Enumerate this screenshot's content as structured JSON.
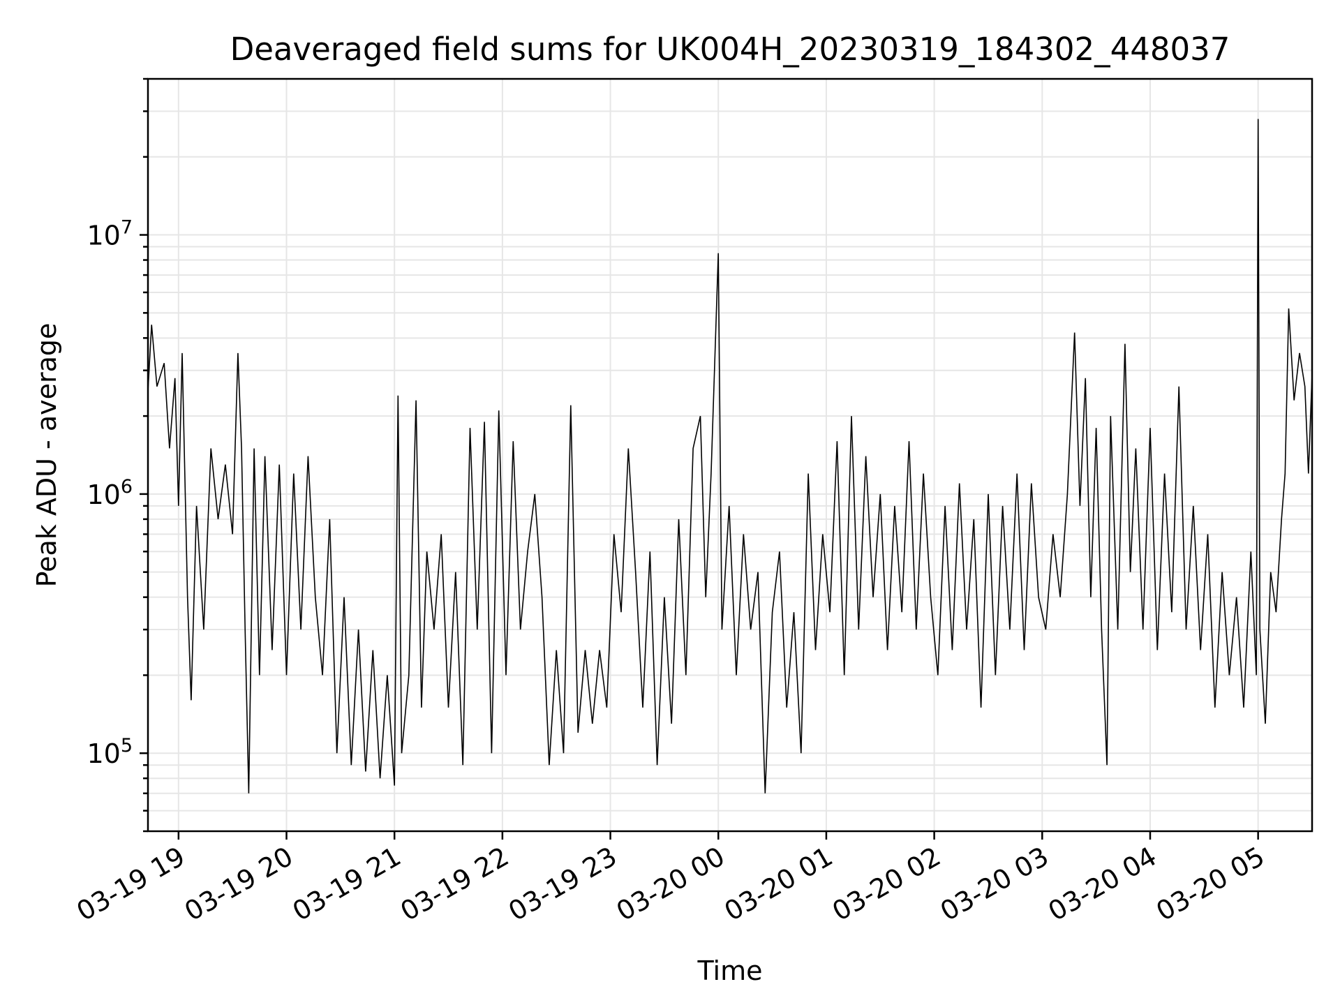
{
  "chart_data": {
    "type": "line",
    "title": "Deaveraged field sums for UK004H_20230319_184302_448037",
    "xlabel": "Time",
    "ylabel": "Peak ADU - average",
    "yscale": "log",
    "ylim": [
      50000,
      40000000
    ],
    "xlim": [
      "03-19 18:43",
      "03-20 05:30"
    ],
    "grid": true,
    "x_tick_labels": [
      "03-19 19",
      "03-19 20",
      "03-19 21",
      "03-19 22",
      "03-19 23",
      "03-20 00",
      "03-20 01",
      "03-20 02",
      "03-20 03",
      "03-20 04",
      "03-20 05"
    ],
    "y_tick_labels": [
      {
        "base": "10",
        "exp": "5",
        "value": 100000
      },
      {
        "base": "10",
        "exp": "6",
        "value": 1000000
      },
      {
        "base": "10",
        "exp": "7",
        "value": 10000000
      }
    ],
    "series": [
      {
        "color": "#000000",
        "points": [
          [
            "03-19 18:43",
            2500000
          ],
          [
            "03-19 18:45",
            4500000
          ],
          [
            "03-19 18:48",
            2600000
          ],
          [
            "03-19 18:52",
            3200000
          ],
          [
            "03-19 18:55",
            1500000
          ],
          [
            "03-19 18:58",
            2800000
          ],
          [
            "03-19 19:00",
            900000
          ],
          [
            "03-19 19:02",
            3500000
          ],
          [
            "03-19 19:05",
            400000
          ],
          [
            "03-19 19:07",
            160000
          ],
          [
            "03-19 19:10",
            900000
          ],
          [
            "03-19 19:14",
            300000
          ],
          [
            "03-19 19:18",
            1500000
          ],
          [
            "03-19 19:22",
            800000
          ],
          [
            "03-19 19:26",
            1300000
          ],
          [
            "03-19 19:30",
            700000
          ],
          [
            "03-19 19:33",
            3500000
          ],
          [
            "03-19 19:35",
            1500000
          ],
          [
            "03-19 19:37",
            300000
          ],
          [
            "03-19 19:39",
            70000
          ],
          [
            "03-19 19:42",
            1500000
          ],
          [
            "03-19 19:45",
            200000
          ],
          [
            "03-19 19:48",
            1400000
          ],
          [
            "03-19 19:52",
            250000
          ],
          [
            "03-19 19:56",
            1300000
          ],
          [
            "03-19 20:00",
            200000
          ],
          [
            "03-19 20:04",
            1200000
          ],
          [
            "03-19 20:08",
            300000
          ],
          [
            "03-19 20:12",
            1400000
          ],
          [
            "03-19 20:16",
            400000
          ],
          [
            "03-19 20:20",
            200000
          ],
          [
            "03-19 20:24",
            800000
          ],
          [
            "03-19 20:28",
            100000
          ],
          [
            "03-19 20:32",
            400000
          ],
          [
            "03-19 20:36",
            90000
          ],
          [
            "03-19 20:40",
            300000
          ],
          [
            "03-19 20:44",
            85000
          ],
          [
            "03-19 20:48",
            250000
          ],
          [
            "03-19 20:52",
            80000
          ],
          [
            "03-19 20:56",
            200000
          ],
          [
            "03-19 21:00",
            75000
          ],
          [
            "03-19 21:02",
            2400000
          ],
          [
            "03-19 21:04",
            100000
          ],
          [
            "03-19 21:08",
            200000
          ],
          [
            "03-19 21:12",
            2300000
          ],
          [
            "03-19 21:15",
            150000
          ],
          [
            "03-19 21:18",
            600000
          ],
          [
            "03-19 21:22",
            300000
          ],
          [
            "03-19 21:26",
            700000
          ],
          [
            "03-19 21:30",
            150000
          ],
          [
            "03-19 21:34",
            500000
          ],
          [
            "03-19 21:38",
            90000
          ],
          [
            "03-19 21:42",
            1800000
          ],
          [
            "03-19 21:46",
            300000
          ],
          [
            "03-19 21:50",
            1900000
          ],
          [
            "03-19 21:54",
            100000
          ],
          [
            "03-19 21:58",
            2100000
          ],
          [
            "03-19 22:02",
            200000
          ],
          [
            "03-19 22:06",
            1600000
          ],
          [
            "03-19 22:10",
            300000
          ],
          [
            "03-19 22:14",
            600000
          ],
          [
            "03-19 22:18",
            1000000
          ],
          [
            "03-19 22:22",
            400000
          ],
          [
            "03-19 22:26",
            90000
          ],
          [
            "03-19 22:30",
            250000
          ],
          [
            "03-19 22:34",
            100000
          ],
          [
            "03-19 22:38",
            2200000
          ],
          [
            "03-19 22:42",
            120000
          ],
          [
            "03-19 22:46",
            250000
          ],
          [
            "03-19 22:50",
            130000
          ],
          [
            "03-19 22:54",
            250000
          ],
          [
            "03-19 22:58",
            150000
          ],
          [
            "03-19 23:02",
            700000
          ],
          [
            "03-19 23:06",
            350000
          ],
          [
            "03-19 23:10",
            1500000
          ],
          [
            "03-19 23:14",
            500000
          ],
          [
            "03-19 23:18",
            150000
          ],
          [
            "03-19 23:22",
            600000
          ],
          [
            "03-19 23:26",
            90000
          ],
          [
            "03-19 23:30",
            400000
          ],
          [
            "03-19 23:34",
            130000
          ],
          [
            "03-19 23:38",
            800000
          ],
          [
            "03-19 23:42",
            200000
          ],
          [
            "03-19 23:46",
            1500000
          ],
          [
            "03-19 23:50",
            2000000
          ],
          [
            "03-19 23:53",
            400000
          ],
          [
            "03-19 23:56",
            1200000
          ],
          [
            "03-20 00:00",
            8500000
          ],
          [
            "03-20 00:02",
            300000
          ],
          [
            "03-20 00:06",
            900000
          ],
          [
            "03-20 00:10",
            200000
          ],
          [
            "03-20 00:14",
            700000
          ],
          [
            "03-20 00:18",
            300000
          ],
          [
            "03-20 00:22",
            500000
          ],
          [
            "03-20 00:26",
            70000
          ],
          [
            "03-20 00:30",
            350000
          ],
          [
            "03-20 00:34",
            600000
          ],
          [
            "03-20 00:38",
            150000
          ],
          [
            "03-20 00:42",
            350000
          ],
          [
            "03-20 00:46",
            100000
          ],
          [
            "03-20 00:50",
            1200000
          ],
          [
            "03-20 00:54",
            250000
          ],
          [
            "03-20 00:58",
            700000
          ],
          [
            "03-20 01:02",
            350000
          ],
          [
            "03-20 01:06",
            1600000
          ],
          [
            "03-20 01:10",
            200000
          ],
          [
            "03-20 01:14",
            2000000
          ],
          [
            "03-20 01:18",
            300000
          ],
          [
            "03-20 01:22",
            1400000
          ],
          [
            "03-20 01:26",
            400000
          ],
          [
            "03-20 01:30",
            1000000
          ],
          [
            "03-20 01:34",
            250000
          ],
          [
            "03-20 01:38",
            900000
          ],
          [
            "03-20 01:42",
            350000
          ],
          [
            "03-20 01:46",
            1600000
          ],
          [
            "03-20 01:50",
            300000
          ],
          [
            "03-20 01:54",
            1200000
          ],
          [
            "03-20 01:58",
            400000
          ],
          [
            "03-20 02:02",
            200000
          ],
          [
            "03-20 02:06",
            900000
          ],
          [
            "03-20 02:10",
            250000
          ],
          [
            "03-20 02:14",
            1100000
          ],
          [
            "03-20 02:18",
            300000
          ],
          [
            "03-20 02:22",
            800000
          ],
          [
            "03-20 02:26",
            150000
          ],
          [
            "03-20 02:30",
            1000000
          ],
          [
            "03-20 02:34",
            200000
          ],
          [
            "03-20 02:38",
            900000
          ],
          [
            "03-20 02:42",
            300000
          ],
          [
            "03-20 02:46",
            1200000
          ],
          [
            "03-20 02:50",
            250000
          ],
          [
            "03-20 02:54",
            1100000
          ],
          [
            "03-20 02:58",
            400000
          ],
          [
            "03-20 03:02",
            300000
          ],
          [
            "03-20 03:06",
            700000
          ],
          [
            "03-20 03:10",
            400000
          ],
          [
            "03-20 03:14",
            1000000
          ],
          [
            "03-20 03:18",
            4200000
          ],
          [
            "03-20 03:21",
            900000
          ],
          [
            "03-20 03:24",
            2800000
          ],
          [
            "03-20 03:27",
            400000
          ],
          [
            "03-20 03:30",
            1800000
          ],
          [
            "03-20 03:33",
            300000
          ],
          [
            "03-20 03:36",
            90000
          ],
          [
            "03-20 03:38",
            2000000
          ],
          [
            "03-20 03:42",
            300000
          ],
          [
            "03-20 03:46",
            3800000
          ],
          [
            "03-20 03:49",
            500000
          ],
          [
            "03-20 03:52",
            1500000
          ],
          [
            "03-20 03:56",
            300000
          ],
          [
            "03-20 04:00",
            1800000
          ],
          [
            "03-20 04:04",
            250000
          ],
          [
            "03-20 04:08",
            1200000
          ],
          [
            "03-20 04:12",
            350000
          ],
          [
            "03-20 04:16",
            2600000
          ],
          [
            "03-20 04:20",
            300000
          ],
          [
            "03-20 04:24",
            900000
          ],
          [
            "03-20 04:28",
            250000
          ],
          [
            "03-20 04:32",
            700000
          ],
          [
            "03-20 04:36",
            150000
          ],
          [
            "03-20 04:40",
            500000
          ],
          [
            "03-20 04:44",
            200000
          ],
          [
            "03-20 04:48",
            400000
          ],
          [
            "03-20 04:52",
            150000
          ],
          [
            "03-20 04:56",
            600000
          ],
          [
            "03-20 04:59",
            200000
          ],
          [
            "03-20 05:00",
            28000000
          ],
          [
            "03-20 05:01",
            300000
          ],
          [
            "03-20 05:04",
            130000
          ],
          [
            "03-20 05:07",
            500000
          ],
          [
            "03-20 05:10",
            350000
          ],
          [
            "03-20 05:13",
            800000
          ],
          [
            "03-20 05:15",
            1200000
          ],
          [
            "03-20 05:17",
            5200000
          ],
          [
            "03-20 05:20",
            2300000
          ],
          [
            "03-20 05:23",
            3500000
          ],
          [
            "03-20 05:26",
            2600000
          ],
          [
            "03-20 05:28",
            1200000
          ],
          [
            "03-20 05:30",
            2900000
          ]
        ]
      }
    ]
  }
}
